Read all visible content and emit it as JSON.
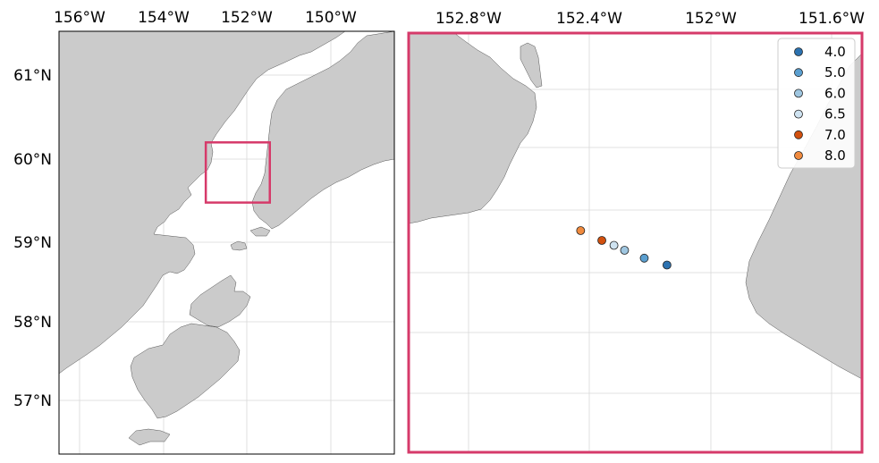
{
  "overview_map": {
    "lon_labels": [
      "156°W",
      "154°W",
      "152°W",
      "150°W"
    ],
    "lat_labels": [
      "61°N",
      "60°N",
      "59°N",
      "58°N",
      "57°N"
    ],
    "inset_box": {
      "lon_min": -152.98,
      "lon_max": -151.45,
      "lat_min": 59.48,
      "lat_max": 60.2
    }
  },
  "detail_map": {
    "lon_labels": [
      "152.8°W",
      "152.4°W",
      "152°W",
      "151.6°W"
    ],
    "legend": {
      "entries": [
        {
          "label": "4.0",
          "color": "#2c72b0"
        },
        {
          "label": "5.0",
          "color": "#5b9fd0"
        },
        {
          "label": "6.0",
          "color": "#9fc6e0"
        },
        {
          "label": "6.5",
          "color": "#cfe3f1"
        },
        {
          "label": "7.0",
          "color": "#d2500e"
        },
        {
          "label": "8.0",
          "color": "#f08a3e"
        }
      ]
    },
    "points": [
      {
        "lon": -152.43,
        "lat": 59.88,
        "value": "8.0",
        "color": "#f08a3e"
      },
      {
        "lon": -152.36,
        "lat": 59.87,
        "value": "7.0",
        "color": "#d2500e"
      },
      {
        "lon": -152.32,
        "lat": 59.865,
        "value": "6.5",
        "color": "#cfe3f1"
      },
      {
        "lon": -152.285,
        "lat": 59.86,
        "value": "6.0",
        "color": "#9fc6e0"
      },
      {
        "lon": -152.22,
        "lat": 59.852,
        "value": "5.0",
        "color": "#5b9fd0"
      },
      {
        "lon": -152.145,
        "lat": 59.845,
        "value": "4.0",
        "color": "#2c72b0"
      }
    ],
    "frame_color": "#d63a6a"
  }
}
